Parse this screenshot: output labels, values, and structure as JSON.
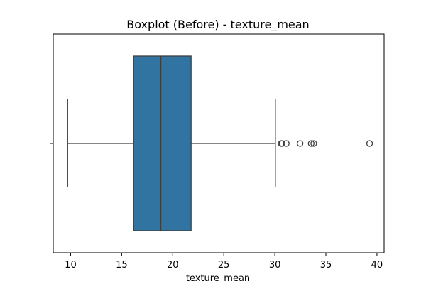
{
  "chart_data": {
    "type": "boxplot",
    "title": "Boxplot (Before) - texture_mean",
    "xlabel": "texture_mean",
    "ylabel": "",
    "orientation": "horizontal",
    "xlim": [
      8.3,
      40.7
    ],
    "xticks": [
      10,
      15,
      20,
      25,
      30,
      35,
      40
    ],
    "grid": false,
    "legend": "none",
    "box": {
      "whisker_low": 9.71,
      "q1": 16.17,
      "median": 18.84,
      "q3": 21.8,
      "whisker_high": 30.05
    },
    "outliers": [
      30.62,
      30.72,
      31.12,
      32.47,
      33.56,
      33.81,
      39.28
    ],
    "colors": {
      "box_fill": "#3274a1",
      "line": "#3f3f3f",
      "axes": "#000000"
    }
  }
}
